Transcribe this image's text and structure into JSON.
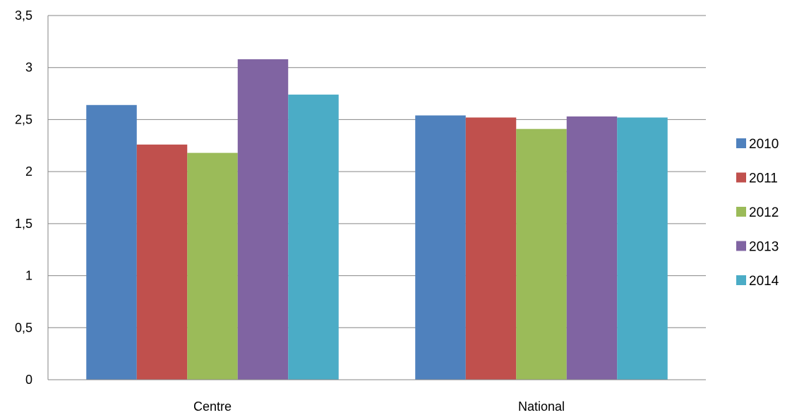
{
  "chart_data": {
    "type": "bar",
    "categories": [
      "Centre",
      "National"
    ],
    "series": [
      {
        "name": "2010",
        "color": "#4F81BD",
        "values": [
          2.64,
          2.54
        ]
      },
      {
        "name": "2011",
        "color": "#C0504D",
        "values": [
          2.26,
          2.52
        ]
      },
      {
        "name": "2012",
        "color": "#9BBB59",
        "values": [
          2.18,
          2.41
        ]
      },
      {
        "name": "2013",
        "color": "#8064A2",
        "values": [
          3.08,
          2.53
        ]
      },
      {
        "name": "2014",
        "color": "#4BACC6",
        "values": [
          2.74,
          2.52
        ]
      }
    ],
    "ylim": [
      0,
      3.5
    ],
    "yticks": [
      0,
      0.5,
      1,
      1.5,
      2,
      2.5,
      3,
      3.5
    ],
    "ytick_labels": [
      "0",
      "0,5",
      "1",
      "1,5",
      "2",
      "2,5",
      "3",
      "3,5"
    ],
    "grid": true,
    "legend_position": "right",
    "gridline_color": "#868686"
  }
}
